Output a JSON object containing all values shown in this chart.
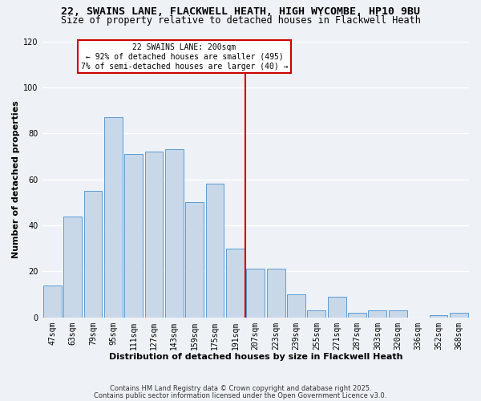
{
  "title": "22, SWAINS LANE, FLACKWELL HEATH, HIGH WYCOMBE, HP10 9BU",
  "subtitle": "Size of property relative to detached houses in Flackwell Heath",
  "xlabel": "Distribution of detached houses by size in Flackwell Heath",
  "ylabel": "Number of detached properties",
  "bar_labels": [
    "47sqm",
    "63sqm",
    "79sqm",
    "95sqm",
    "111sqm",
    "127sqm",
    "143sqm",
    "159sqm",
    "175sqm",
    "191sqm",
    "207sqm",
    "223sqm",
    "239sqm",
    "255sqm",
    "271sqm",
    "287sqm",
    "303sqm",
    "320sqm",
    "336sqm",
    "352sqm",
    "368sqm"
  ],
  "bar_values": [
    14,
    44,
    55,
    87,
    71,
    72,
    73,
    50,
    58,
    30,
    21,
    21,
    10,
    3,
    9,
    2,
    3,
    3,
    0,
    1,
    2
  ],
  "bar_color": "#c8d8e8",
  "bar_edge_color": "#5b9bd5",
  "vline_color": "#cc0000",
  "annotation_title": "22 SWAINS LANE: 200sqm",
  "annotation_line1": "← 92% of detached houses are smaller (495)",
  "annotation_line2": "7% of semi-detached houses are larger (40) →",
  "annotation_box_color": "#cc0000",
  "ylim": [
    0,
    120
  ],
  "yticks": [
    0,
    20,
    40,
    60,
    80,
    100,
    120
  ],
  "footer1": "Contains HM Land Registry data © Crown copyright and database right 2025.",
  "footer2": "Contains public sector information licensed under the Open Government Licence v3.0.",
  "bg_color": "#eef2f7",
  "grid_color": "#ffffff",
  "title_fontsize": 9.5,
  "subtitle_fontsize": 8.5,
  "axis_fontsize": 8,
  "tick_fontsize": 7,
  "footer_fontsize": 6
}
